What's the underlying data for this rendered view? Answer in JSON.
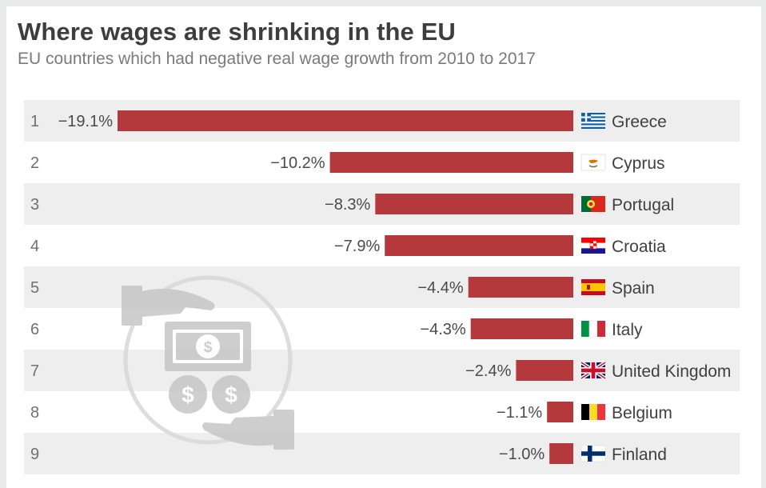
{
  "header": {
    "title": "Where wages are shrinking in the EU",
    "subtitle": "EU countries which had negative real wage growth from 2010 to 2017"
  },
  "colors": {
    "bar": "#b5383c",
    "band": "#eeeeee",
    "icon": "#c6c6c6"
  },
  "chart_data": {
    "type": "bar",
    "orientation": "horizontal",
    "title": "Where wages are shrinking in the EU",
    "subtitle": "EU countries which had negative real wage growth from 2010 to 2017",
    "ranks": [
      "1",
      "2",
      "3",
      "4",
      "5",
      "6",
      "7",
      "8",
      "9"
    ],
    "categories": [
      "Greece",
      "Cyprus",
      "Portugal",
      "Croatia",
      "Spain",
      "Italy",
      "United Kingdom",
      "Belgium",
      "Finland"
    ],
    "values": [
      -19.1,
      -10.2,
      -8.3,
      -7.9,
      -4.4,
      -4.3,
      -2.4,
      -1.1,
      -1.0
    ],
    "value_labels": [
      "−19.1%",
      "−10.2%",
      "−8.3%",
      "−7.9%",
      "−4.4%",
      "−4.3%",
      "−2.4%",
      "−1.1%",
      "−1.0%"
    ],
    "flags": [
      "greece-flag-icon",
      "cyprus-flag-icon",
      "portugal-flag-icon",
      "croatia-flag-icon",
      "spain-flag-icon",
      "italy-flag-icon",
      "uk-flag-icon",
      "belgium-flag-icon",
      "finland-flag-icon"
    ],
    "xlim": [
      -19.1,
      0
    ],
    "grid": false,
    "legend": "none"
  }
}
